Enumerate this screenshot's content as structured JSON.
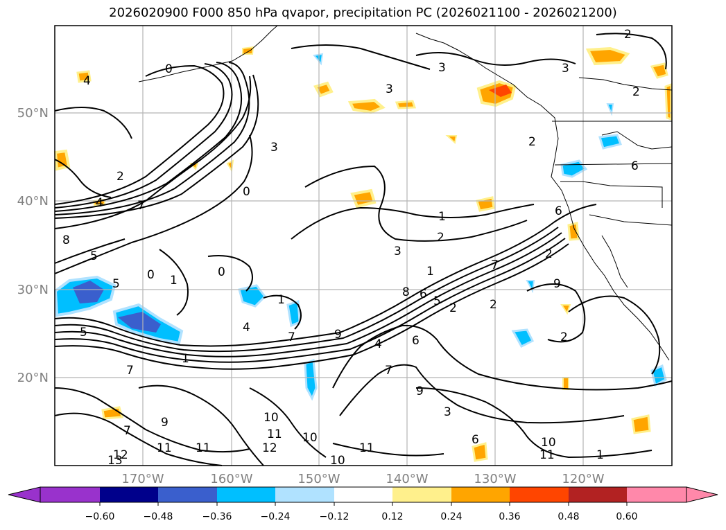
{
  "title": "2026020900 F000 850 hPa qvapor, precipitation PC (2026021100 - 2026021200)",
  "map": {
    "lat_labels": [
      "50°N",
      "40°N",
      "30°N",
      "20°N"
    ],
    "lon_labels": [
      "170°W",
      "160°W",
      "150°W",
      "140°W",
      "130°W",
      "120°W"
    ],
    "contour_labels": [
      "2",
      "4",
      "3",
      "0",
      "3",
      "3",
      "2",
      "3",
      "2",
      "6",
      "2",
      "4",
      "5",
      "7",
      "8",
      "1",
      "2",
      "3",
      "0",
      "6",
      "9",
      "2",
      "7",
      "1",
      "8",
      "6",
      "5",
      "2",
      "1",
      "7",
      "2",
      "4",
      "0",
      "0",
      "9",
      "5",
      "5",
      "1",
      "1",
      "2",
      "6",
      "4",
      "7",
      "9",
      "3",
      "7",
      "11",
      "10",
      "12",
      "11",
      "10",
      "11",
      "10",
      "11",
      "9",
      "6",
      "7",
      "1",
      "12",
      "10",
      "11",
      "13"
    ]
  },
  "colorbar": {
    "tick_labels": [
      "−0.60",
      "−0.48",
      "−0.36",
      "−0.24",
      "−0.12",
      "0.12",
      "0.24",
      "0.36",
      "0.48",
      "0.60"
    ],
    "colors": [
      "#9932cc",
      "#00008b",
      "#3a5fcd",
      "#00bfff",
      "#b0e2ff",
      "#ffffff",
      "#fff08c",
      "#ffa500",
      "#ff4500",
      "#b22222",
      "#ff88aa"
    ]
  }
}
